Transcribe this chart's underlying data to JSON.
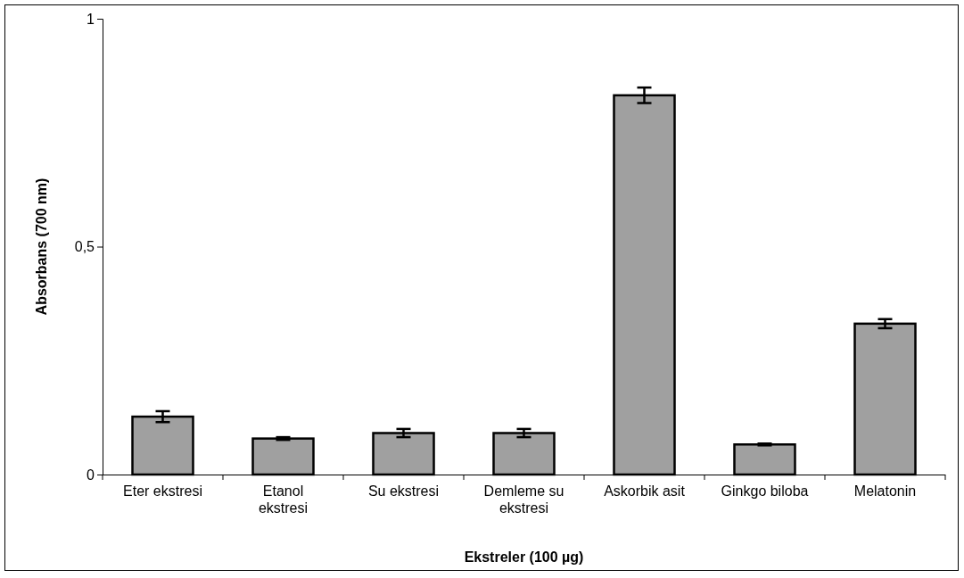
{
  "chart_data": {
    "type": "bar",
    "xlabel": "Ekstreler (100 µg)",
    "ylabel": "Absorbans (700 nm)",
    "categories": [
      "Eter ekstresi",
      "Etanol ekstresi",
      "Su ekstresi",
      "Demleme su ekstresi",
      "Askorbik asit",
      "Ginkgo biloba",
      "Melatonin"
    ],
    "values": [
      0.127,
      0.079,
      0.091,
      0.091,
      0.832,
      0.066,
      0.331
    ],
    "errors": [
      0.012,
      0.003,
      0.009,
      0.009,
      0.017,
      0.002,
      0.01
    ],
    "color": "#a0a0a0",
    "ylim": [
      0,
      1
    ],
    "yticks": [
      0,
      {
        "value": 0.5,
        "label": "0,5"
      },
      1
    ],
    "grid": false
  }
}
